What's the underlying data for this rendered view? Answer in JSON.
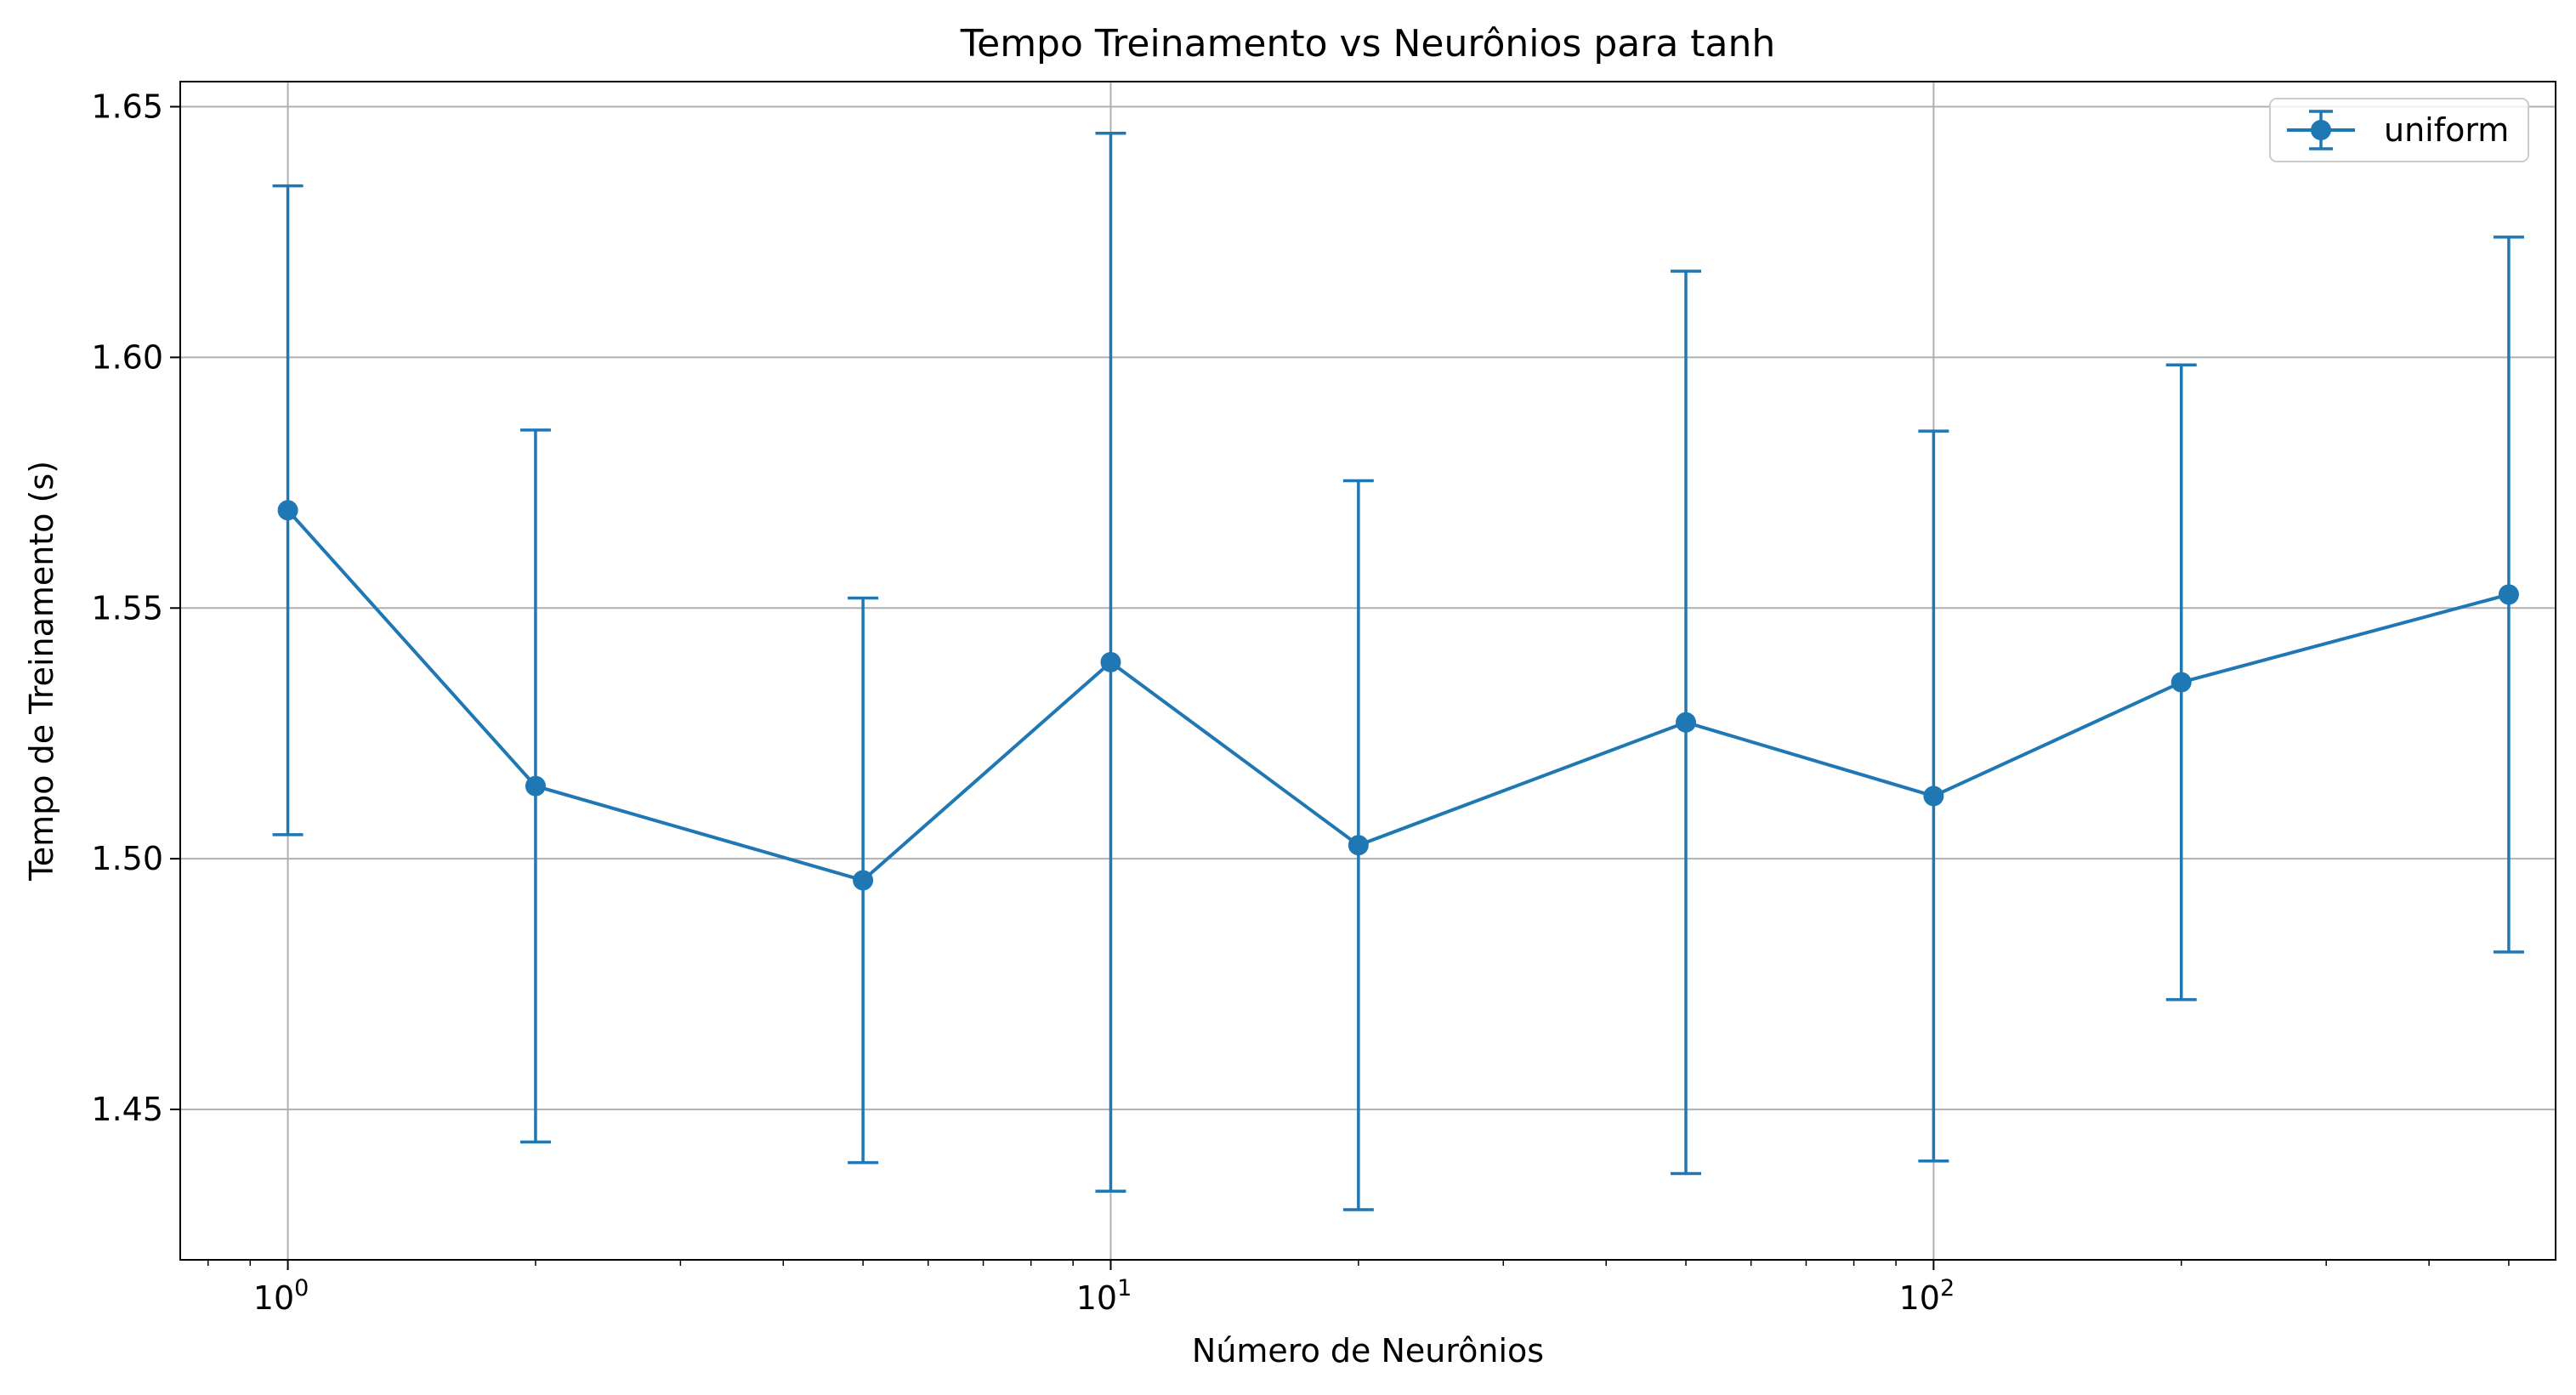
{
  "chart_data": {
    "type": "line",
    "title": "Tempo Treinamento vs Neurônios para tanh",
    "xlabel": "Número de Neurônios",
    "ylabel": "Tempo de Treinamento (s)",
    "x_scale": "log",
    "xlim": [
      0.74,
      570
    ],
    "ylim": [
      1.42,
      1.655
    ],
    "grid": true,
    "legend_position": "top-right",
    "x_ticks": [
      {
        "value": 1,
        "base": "10",
        "exp": "0"
      },
      {
        "value": 10,
        "base": "10",
        "exp": "1"
      },
      {
        "value": 100,
        "base": "10",
        "exp": "2"
      }
    ],
    "y_ticks": [
      {
        "value": 1.45,
        "label": "1.45"
      },
      {
        "value": 1.5,
        "label": "1.50"
      },
      {
        "value": 1.55,
        "label": "1.55"
      },
      {
        "value": 1.6,
        "label": "1.60"
      },
      {
        "value": 1.65,
        "label": "1.65"
      }
    ],
    "series": [
      {
        "name": "uniform",
        "color": "#1f77b4",
        "x": [
          1,
          2,
          5,
          10,
          20,
          50,
          100,
          200,
          500
        ],
        "y": [
          1.5695,
          1.5145,
          1.4957,
          1.5392,
          1.5027,
          1.5272,
          1.5125,
          1.5352,
          1.5527
        ],
        "err": [
          0.0647,
          0.071,
          0.0563,
          0.1055,
          0.0727,
          0.09,
          0.0728,
          0.0633,
          0.0713
        ]
      }
    ]
  }
}
